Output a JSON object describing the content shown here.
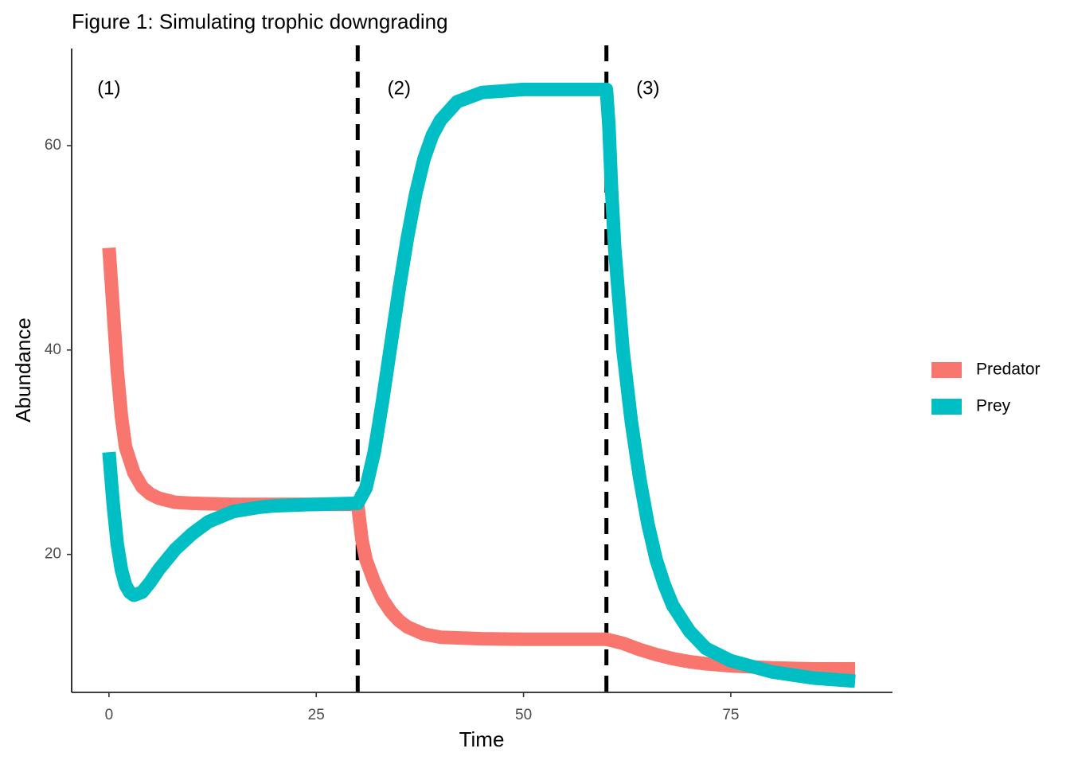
{
  "chart_data": {
    "type": "line",
    "title": "Figure 1: Simulating trophic downgrading",
    "xlabel": "Time",
    "ylabel": "Abundance",
    "xlim": [
      -4.5,
      94.5
    ],
    "ylim": [
      6.5,
      69.5
    ],
    "x_ticks": [
      0,
      25,
      50,
      75
    ],
    "y_ticks": [
      20,
      40,
      60
    ],
    "grid": false,
    "legend": {
      "position": "right"
    },
    "series": [
      {
        "name": "Predator",
        "color": "#F8766D",
        "points": [
          [
            0,
            50
          ],
          [
            0.5,
            44
          ],
          [
            1,
            38
          ],
          [
            1.5,
            33.5
          ],
          [
            2,
            30.5
          ],
          [
            3,
            28
          ],
          [
            4,
            26.6
          ],
          [
            5,
            25.9
          ],
          [
            6,
            25.5
          ],
          [
            8,
            25.1
          ],
          [
            10,
            25
          ],
          [
            15,
            24.9
          ],
          [
            20,
            24.9
          ],
          [
            25,
            24.9
          ],
          [
            30,
            24.9
          ],
          [
            30.5,
            21.5
          ],
          [
            31,
            19.5
          ],
          [
            32,
            17.3
          ],
          [
            33,
            15.6
          ],
          [
            34,
            14.4
          ],
          [
            35,
            13.5
          ],
          [
            36,
            12.9
          ],
          [
            38,
            12.2
          ],
          [
            40,
            11.9
          ],
          [
            45,
            11.75
          ],
          [
            50,
            11.7
          ],
          [
            55,
            11.7
          ],
          [
            60,
            11.7
          ],
          [
            62,
            11.3
          ],
          [
            64,
            10.7
          ],
          [
            66,
            10.2
          ],
          [
            68,
            9.8
          ],
          [
            70,
            9.5
          ],
          [
            72,
            9.3
          ],
          [
            75,
            9.1
          ],
          [
            80,
            8.9
          ],
          [
            85,
            8.8
          ],
          [
            90,
            8.8
          ]
        ]
      },
      {
        "name": "Prey",
        "color": "#00BFC4",
        "points": [
          [
            0,
            30
          ],
          [
            0.5,
            25
          ],
          [
            1,
            21
          ],
          [
            1.5,
            18.5
          ],
          [
            2,
            17
          ],
          [
            2.5,
            16.3
          ],
          [
            3,
            16
          ],
          [
            4,
            16.3
          ],
          [
            5,
            17.3
          ],
          [
            6,
            18.5
          ],
          [
            8,
            20.5
          ],
          [
            10,
            22
          ],
          [
            12,
            23.2
          ],
          [
            15,
            24.2
          ],
          [
            18,
            24.6
          ],
          [
            20,
            24.75
          ],
          [
            25,
            24.9
          ],
          [
            30,
            25
          ],
          [
            31,
            26.5
          ],
          [
            32,
            30
          ],
          [
            33,
            35
          ],
          [
            34,
            40.5
          ],
          [
            35,
            46
          ],
          [
            36,
            51
          ],
          [
            37,
            55.3
          ],
          [
            38,
            58.7
          ],
          [
            39,
            61
          ],
          [
            40,
            62.5
          ],
          [
            42,
            64.3
          ],
          [
            45,
            65.2
          ],
          [
            50,
            65.5
          ],
          [
            55,
            65.5
          ],
          [
            60,
            65.5
          ],
          [
            60.3,
            62
          ],
          [
            60.6,
            56
          ],
          [
            61,
            50
          ],
          [
            62,
            40
          ],
          [
            63,
            33
          ],
          [
            64,
            27.5
          ],
          [
            65,
            23
          ],
          [
            66,
            19.5
          ],
          [
            67,
            17
          ],
          [
            68,
            15
          ],
          [
            70,
            12.5
          ],
          [
            72,
            10.8
          ],
          [
            75,
            9.6
          ],
          [
            80,
            8.5
          ],
          [
            85,
            7.9
          ],
          [
            90,
            7.6
          ]
        ]
      }
    ],
    "vlines": [
      30,
      60
    ],
    "annotations": [
      {
        "text": "(1)",
        "x": 0,
        "y": 65.5
      },
      {
        "text": "(2)",
        "x": 35,
        "y": 65.5
      },
      {
        "text": "(3)",
        "x": 65,
        "y": 65.5
      }
    ]
  }
}
